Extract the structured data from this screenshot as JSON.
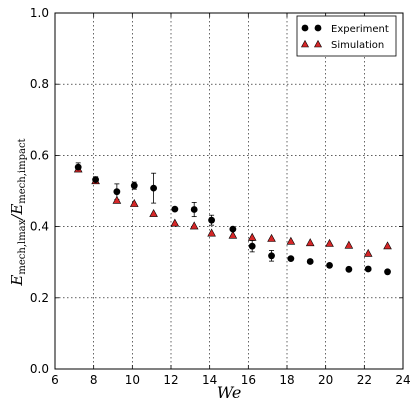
{
  "chart_data": {
    "type": "scatter",
    "xlabel": "We",
    "ylabel_main": "E",
    "ylabel_sub_num": "mech,lmax",
    "ylabel_sub_den": "mech,impact",
    "xlim": [
      6,
      24
    ],
    "ylim": [
      0.0,
      1.0
    ],
    "xticks": [
      "6",
      "8",
      "10",
      "12",
      "14",
      "16",
      "18",
      "20",
      "22",
      "24"
    ],
    "yticks": [
      "0.0",
      "0.2",
      "0.4",
      "0.6",
      "0.8",
      "1.0"
    ],
    "grid": true,
    "legend_position": "top-right",
    "series": [
      {
        "name": "Experiment",
        "marker": "circle",
        "color": "#000000",
        "x": [
          7.2,
          8.1,
          9.2,
          10.1,
          11.1,
          12.2,
          13.2,
          14.1,
          15.2,
          16.2,
          17.2,
          18.2,
          19.2,
          20.2,
          21.2,
          22.2,
          23.2
        ],
        "y": [
          0.567,
          0.532,
          0.498,
          0.515,
          0.508,
          0.449,
          0.448,
          0.418,
          0.393,
          0.345,
          0.318,
          0.31,
          0.302,
          0.291,
          0.28,
          0.281,
          0.273
        ],
        "err": [
          0.012,
          0.008,
          0.022,
          0.01,
          0.042,
          0.0,
          0.02,
          0.014,
          0.0,
          0.016,
          0.015,
          0.0,
          0.0,
          0.0,
          0.0,
          0.0,
          0.0
        ]
      },
      {
        "name": "Simulation",
        "marker": "triangle",
        "color": "#d62728",
        "x": [
          7.2,
          8.1,
          9.2,
          10.1,
          11.1,
          12.2,
          13.2,
          14.1,
          15.2,
          16.2,
          17.2,
          18.2,
          19.2,
          20.2,
          21.2,
          22.2,
          23.2
        ],
        "y": [
          0.561,
          0.528,
          0.473,
          0.464,
          0.436,
          0.409,
          0.401,
          0.381,
          0.375,
          0.369,
          0.366,
          0.358,
          0.354,
          0.352,
          0.347,
          0.324,
          0.345
        ]
      }
    ]
  }
}
